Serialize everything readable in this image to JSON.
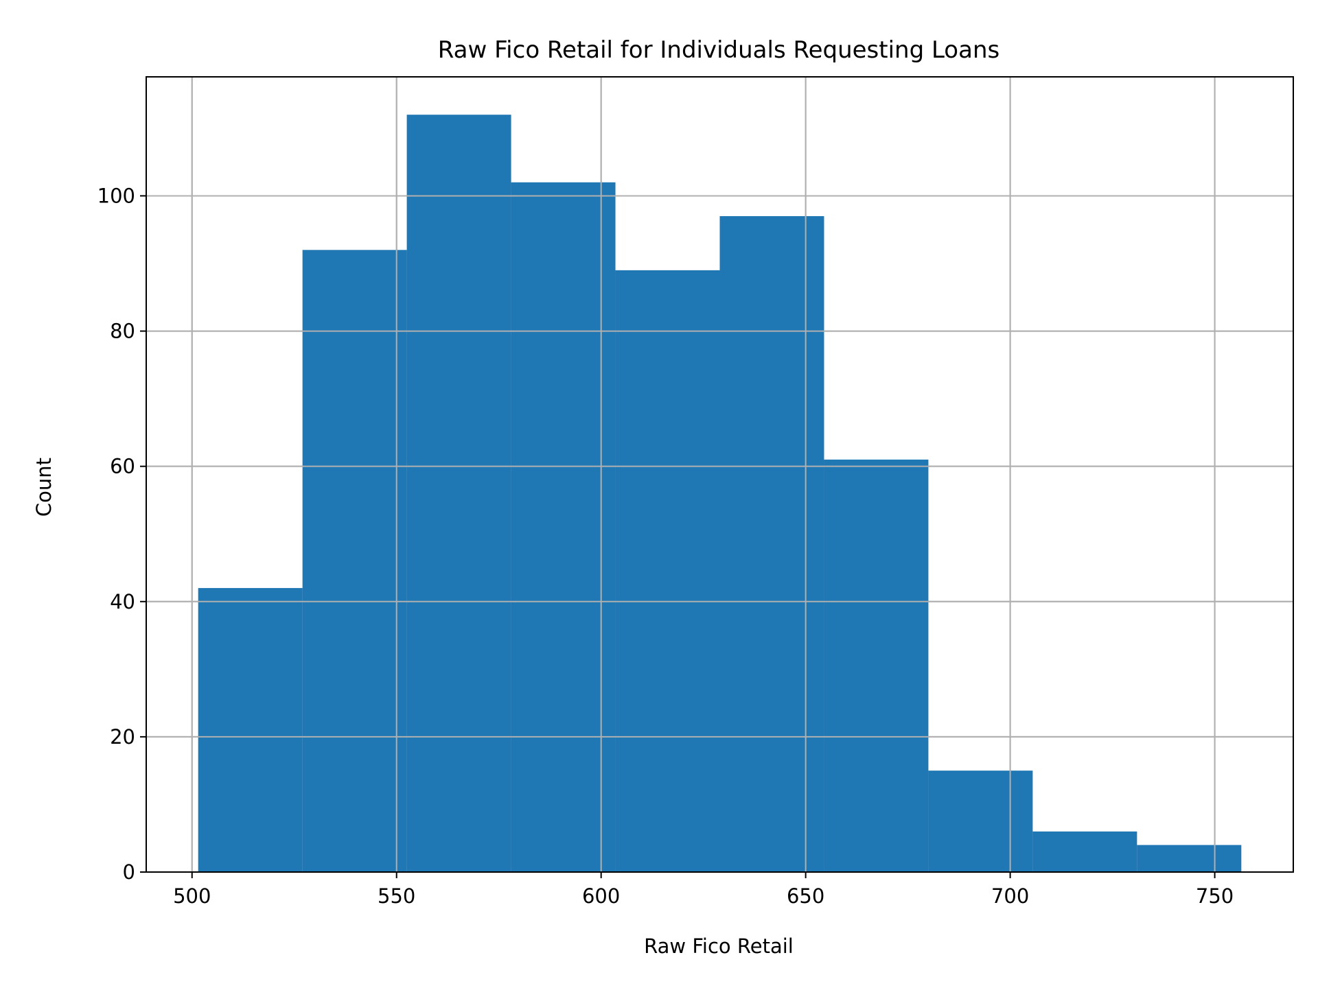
{
  "chart_data": {
    "type": "bar",
    "subtype": "histogram",
    "title": "Raw Fico Retail for Individuals Requesting Loans",
    "xlabel": "Raw Fico Retail",
    "ylabel": "Count",
    "bins": [
      {
        "x0": 501.5,
        "x1": 527.0,
        "count": 42
      },
      {
        "x0": 527.0,
        "x1": 552.5,
        "count": 92
      },
      {
        "x0": 552.5,
        "x1": 578.0,
        "count": 112
      },
      {
        "x0": 578.0,
        "x1": 603.5,
        "count": 102
      },
      {
        "x0": 603.5,
        "x1": 629.0,
        "count": 89
      },
      {
        "x0": 629.0,
        "x1": 654.5,
        "count": 97
      },
      {
        "x0": 654.5,
        "x1": 680.0,
        "count": 61
      },
      {
        "x0": 680.0,
        "x1": 705.5,
        "count": 15
      },
      {
        "x0": 705.5,
        "x1": 731.0,
        "count": 6
      },
      {
        "x0": 731.0,
        "x1": 756.5,
        "count": 4
      }
    ],
    "xlim": [
      488.8,
      769.2
    ],
    "ylim": [
      0,
      117.6
    ],
    "xticks": [
      500,
      550,
      600,
      650,
      700,
      750
    ],
    "yticks": [
      0,
      20,
      40,
      60,
      80,
      100
    ],
    "grid": true,
    "bar_color": "#1f77b4",
    "grid_color": "#b0b0b0"
  }
}
